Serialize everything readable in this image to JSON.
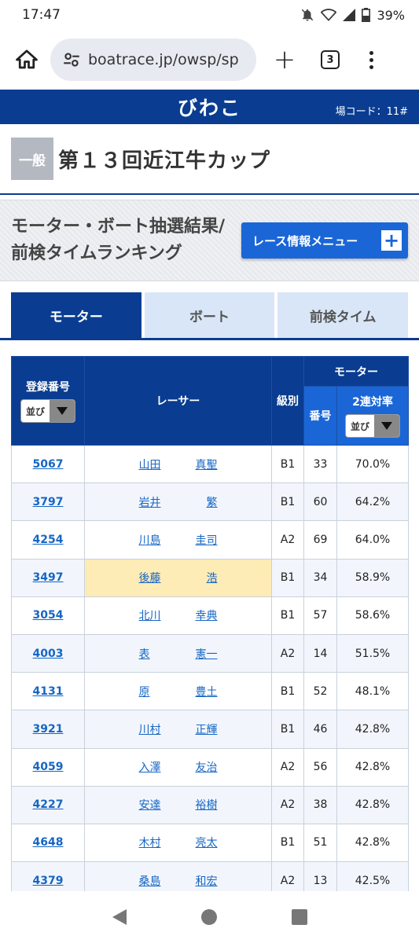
{
  "status": {
    "time": "17:47",
    "battery": "39%"
  },
  "browser": {
    "url": "boatrace.jp/owsp/sp",
    "tab_count": "3"
  },
  "site": {
    "venue": "びわこ",
    "code": "場コード：11#"
  },
  "race": {
    "grade": "一般",
    "name": "第１３回近江牛カップ"
  },
  "section": {
    "title": "モーター・ボート抽選結果/前検タイムランキング",
    "menu_label": "レース情報メニュー"
  },
  "tabs": [
    {
      "label": "モーター"
    },
    {
      "label": "ボート"
    },
    {
      "label": "前検タイム"
    }
  ],
  "table": {
    "headers": {
      "reg_no": "登録番号",
      "racer": "レーサー",
      "class": "級別",
      "motor_group": "モーター",
      "motor_no": "番号",
      "rate": "2連対率",
      "sort_label": "並び"
    },
    "rows": [
      {
        "reg": "5067",
        "surname": "山田",
        "given": "真聖",
        "class": "B1",
        "motor": "33",
        "rate": "70.0%"
      },
      {
        "reg": "3797",
        "surname": "岩井",
        "given": "繁",
        "class": "B1",
        "motor": "60",
        "rate": "64.2%"
      },
      {
        "reg": "4254",
        "surname": "川島",
        "given": "圭司",
        "class": "A2",
        "motor": "69",
        "rate": "64.0%"
      },
      {
        "reg": "3497",
        "surname": "後藤",
        "given": "浩",
        "class": "B1",
        "motor": "34",
        "rate": "58.9%"
      },
      {
        "reg": "3054",
        "surname": "北川",
        "given": "幸典",
        "class": "B1",
        "motor": "57",
        "rate": "58.6%"
      },
      {
        "reg": "4003",
        "surname": "表",
        "given": "憲一",
        "class": "A2",
        "motor": "14",
        "rate": "51.5%"
      },
      {
        "reg": "4131",
        "surname": "原",
        "given": "豊土",
        "class": "B1",
        "motor": "52",
        "rate": "48.1%"
      },
      {
        "reg": "3921",
        "surname": "川村",
        "given": "正輝",
        "class": "B1",
        "motor": "46",
        "rate": "42.8%"
      },
      {
        "reg": "4059",
        "surname": "入澤",
        "given": "友治",
        "class": "A2",
        "motor": "56",
        "rate": "42.8%"
      },
      {
        "reg": "4227",
        "surname": "安達",
        "given": "裕樹",
        "class": "A2",
        "motor": "38",
        "rate": "42.8%"
      },
      {
        "reg": "4648",
        "surname": "木村",
        "given": "亮太",
        "class": "B1",
        "motor": "51",
        "rate": "42.8%"
      },
      {
        "reg": "4379",
        "surname": "桑島",
        "given": "和宏",
        "class": "A2",
        "motor": "13",
        "rate": "42.5%"
      }
    ]
  }
}
